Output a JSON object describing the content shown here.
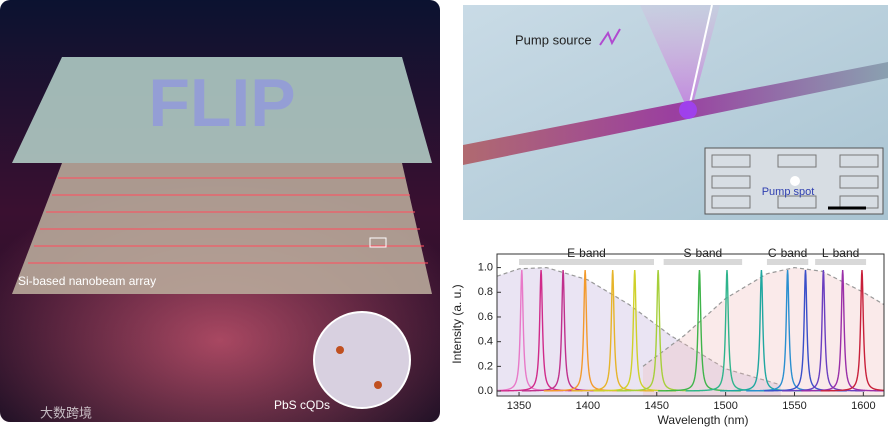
{
  "left_panel": {
    "glass_text": "FLIP",
    "array_label": "Si-based nanobeam array",
    "dots_label": "PbS cQDs",
    "watermark": "大数跨境"
  },
  "top_right_panel": {
    "pump_label": "Pump source",
    "spot_label": "Pump spot"
  },
  "chart_data": {
    "type": "spectrum",
    "xlabel": "Wavelength (nm)",
    "ylabel": "Intensity (a. u.)",
    "xlim": [
      1334,
      1615
    ],
    "ylim": [
      -0.04,
      1.11
    ],
    "xticks": [
      1350,
      1400,
      1450,
      1500,
      1550,
      1600
    ],
    "yticks": [
      {
        "value": 0,
        "label": "0.0"
      },
      0.2,
      0.4,
      0.6,
      0.8,
      {
        "value": 1,
        "label": "1.0"
      }
    ],
    "bands": [
      {
        "label": "E-band",
        "range": [
          1350,
          1448
        ]
      },
      {
        "label": "S-band",
        "range": [
          1455,
          1512
        ]
      },
      {
        "label": "C-band",
        "range": [
          1530,
          1560
        ]
      },
      {
        "label": "L-band",
        "range": [
          1565,
          1602
        ]
      }
    ],
    "envelopes": [
      {
        "x": [
          1334,
          1350,
          1370,
          1400,
          1430,
          1460,
          1500,
          1540
        ],
        "values": [
          0.93,
          0.99,
          1.0,
          0.9,
          0.7,
          0.45,
          0.18,
          0.05
        ],
        "color": "#b9a6d8"
      },
      {
        "x": [
          1440,
          1470,
          1500,
          1530,
          1550,
          1570,
          1600,
          1615
        ],
        "values": [
          0.2,
          0.45,
          0.75,
          0.95,
          1.0,
          0.97,
          0.8,
          0.7
        ],
        "color": "#f0b9b9"
      }
    ],
    "peaks": [
      {
        "center": 1352,
        "height": 0.98,
        "color": "#e879c8"
      },
      {
        "center": 1366,
        "height": 0.98,
        "color": "#d02a8a"
      },
      {
        "center": 1382,
        "height": 0.98,
        "color": "#c0308c"
      },
      {
        "center": 1398,
        "height": 0.98,
        "color": "#f39a2c"
      },
      {
        "center": 1418,
        "height": 0.98,
        "color": "#e6b42a"
      },
      {
        "center": 1434,
        "height": 0.98,
        "color": "#cfd12a"
      },
      {
        "center": 1451,
        "height": 0.98,
        "color": "#a6cf3a"
      },
      {
        "center": 1481,
        "height": 0.98,
        "color": "#3fb44a"
      },
      {
        "center": 1501,
        "height": 0.98,
        "color": "#2fb48c"
      },
      {
        "center": 1526,
        "height": 0.98,
        "color": "#1fa7a0"
      },
      {
        "center": 1545,
        "height": 0.98,
        "color": "#2a8fd0"
      },
      {
        "center": 1558,
        "height": 0.98,
        "color": "#3a4fc9"
      },
      {
        "center": 1571,
        "height": 0.98,
        "color": "#6a3fc0"
      },
      {
        "center": 1585,
        "height": 0.98,
        "color": "#9a2fa8"
      },
      {
        "center": 1599,
        "height": 0.98,
        "color": "#c8203a"
      }
    ]
  }
}
